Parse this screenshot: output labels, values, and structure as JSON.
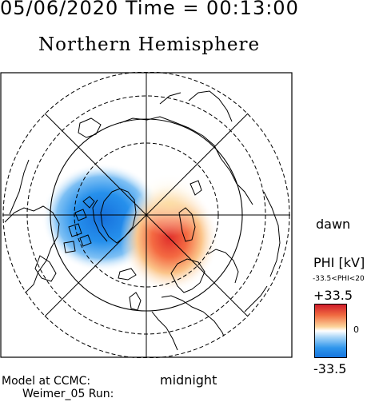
{
  "header": {
    "title": "05/06/2020 Time = 00:13:00",
    "subtitle": "Northern Hemisphere"
  },
  "plot": {
    "dawn_label": "dawn",
    "midnight_label": "midnight",
    "colors": {
      "positive": "#e0302c",
      "negative": "#1a7fe6",
      "neutral": "#ffffff"
    }
  },
  "legend": {
    "title": "PHI [kV]",
    "range_text": "-33.5<PHI<20",
    "max": "+33.5",
    "mid": "0",
    "min": "-33.5"
  },
  "credits": {
    "line1": "Model at CCMC:",
    "line2": "Weimer_05 Run:"
  }
}
